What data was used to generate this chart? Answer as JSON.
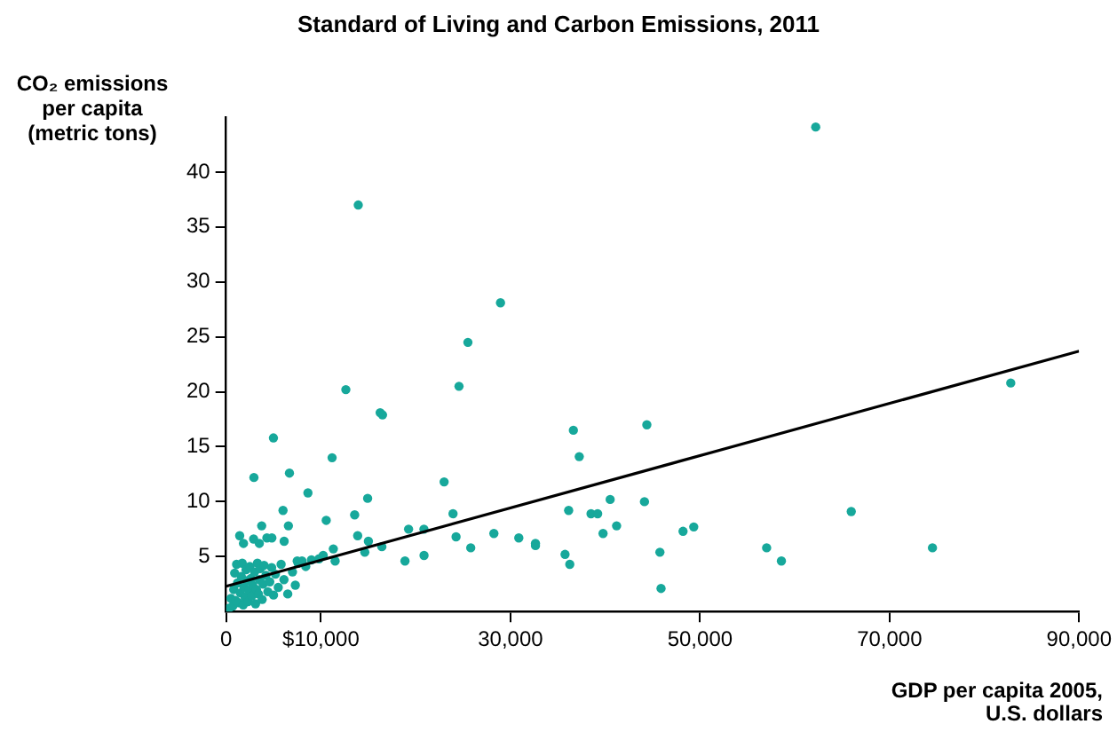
{
  "chart_data": {
    "type": "scatter",
    "title": "Standard of Living and Carbon Emissions, 2011",
    "xlabel": "GDP per capita 2005, U.S. dollars",
    "ylabel": "CO₂ emissions per capita (metric tons)",
    "xlim": [
      0,
      90000
    ],
    "ylim": [
      0,
      45
    ],
    "xticks": [
      0,
      {
        "value": 10000,
        "label": "$10,000"
      },
      {
        "value": 30000,
        "label": "30,000"
      },
      {
        "value": 50000,
        "label": "50,000"
      },
      {
        "value": 70000,
        "label": "70,000"
      },
      {
        "value": 90000,
        "label": "90,000"
      }
    ],
    "yticks": [
      5,
      10,
      15,
      20,
      25,
      30,
      35,
      40
    ],
    "marker": "circle",
    "series": [
      {
        "color": "#17a89b",
        "x": [
          13940,
          28950,
          25510,
          24570,
          12630,
          16250,
          16500,
          4990,
          11180,
          6680,
          2930,
          8630,
          14930,
          23000,
          6000,
          13560,
          10560,
          23940,
          3750,
          6570,
          1430,
          2900,
          3500,
          4300,
          4820,
          1830,
          6120,
          13880,
          15010,
          24260,
          19250,
          20870,
          28250,
          30880,
          32640,
          32640,
          25810,
          16430,
          11310,
          14630,
          20880,
          18870,
          11500,
          10240,
          7500,
          8400,
          35760,
          36260,
          36140,
          36640,
          37260,
          38500,
          39200,
          39770,
          40520,
          41200,
          44140,
          44390,
          62210,
          82790,
          45770,
          45890,
          48210,
          49340,
          57030,
          58590,
          65960,
          74530,
          300,
          500,
          700,
          800,
          900,
          1000,
          1100,
          1200,
          1300,
          1500,
          1600,
          1700,
          1800,
          1900,
          2000,
          2100,
          2200,
          2300,
          2400,
          2500,
          2600,
          2700,
          2800,
          3000,
          3100,
          3200,
          3300,
          3400,
          3500,
          3600,
          3800,
          3900,
          4000,
          4200,
          4400,
          4600,
          4800,
          5000,
          5200,
          5500,
          5800,
          6100,
          6500,
          7000,
          7300,
          7600,
          8000,
          9000,
          9800
        ],
        "values": [
          37.0,
          28.1,
          24.5,
          20.5,
          20.2,
          18.1,
          17.9,
          15.8,
          14.0,
          12.6,
          12.2,
          10.8,
          10.3,
          11.8,
          9.2,
          8.8,
          8.3,
          8.9,
          7.8,
          7.8,
          6.9,
          6.6,
          6.2,
          6.7,
          6.7,
          6.2,
          6.4,
          6.9,
          6.4,
          6.8,
          7.5,
          7.5,
          7.1,
          6.7,
          6.2,
          6.0,
          5.8,
          5.9,
          5.7,
          5.4,
          5.1,
          4.6,
          4.6,
          5.1,
          4.6,
          4.1,
          5.2,
          4.3,
          9.2,
          16.5,
          14.1,
          8.9,
          8.9,
          7.1,
          10.2,
          7.8,
          10.0,
          17.0,
          44.1,
          20.8,
          5.4,
          2.1,
          7.3,
          7.7,
          5.8,
          4.6,
          9.1,
          5.8,
          0.3,
          1.2,
          0.5,
          2.0,
          3.5,
          1.0,
          4.3,
          2.6,
          0.8,
          1.7,
          3.2,
          4.4,
          0.6,
          2.2,
          1.3,
          3.8,
          2.8,
          0.9,
          1.9,
          4.1,
          3.0,
          1.4,
          2.4,
          3.6,
          0.7,
          2.0,
          4.4,
          1.6,
          2.9,
          3.9,
          1.1,
          2.5,
          4.2,
          3.3,
          1.8,
          2.7,
          4.0,
          1.5,
          3.4,
          2.2,
          4.3,
          2.9,
          1.6,
          3.6,
          2.4,
          4.4,
          4.6,
          4.7,
          4.8
        ]
      },
      {
        "type": "line",
        "marker": "none",
        "color": "#000000",
        "x": [
          0,
          90000
        ],
        "values": [
          2.3,
          23.7
        ]
      }
    ]
  }
}
